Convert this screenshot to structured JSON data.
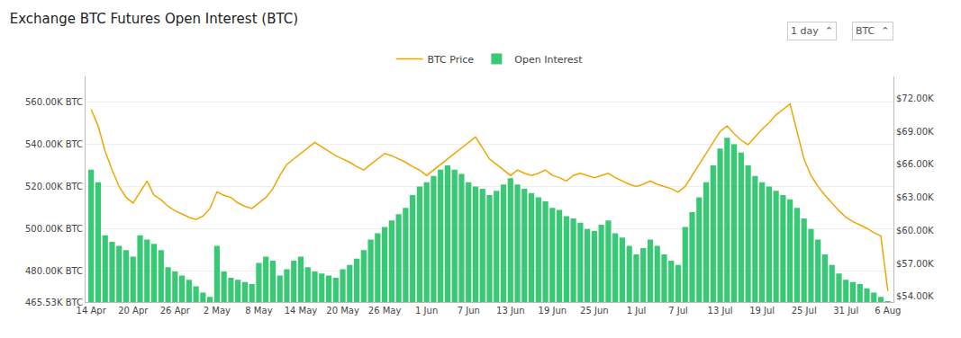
{
  "chart_data": {
    "type": "bar",
    "title": "Exchange BTC Futures Open Interest (BTC)",
    "categories": [
      "14 Apr",
      null,
      null,
      null,
      null,
      null,
      "20 Apr",
      null,
      null,
      null,
      null,
      null,
      "26 Apr",
      null,
      null,
      null,
      null,
      null,
      "2 May",
      null,
      null,
      null,
      null,
      null,
      "8 May",
      null,
      null,
      null,
      null,
      null,
      "14 May",
      null,
      null,
      null,
      null,
      null,
      "20 May",
      null,
      null,
      null,
      null,
      null,
      "26 May",
      null,
      null,
      null,
      null,
      null,
      "1 Jun",
      null,
      null,
      null,
      null,
      null,
      "7 Jun",
      null,
      null,
      null,
      null,
      null,
      "13 Jun",
      null,
      null,
      null,
      null,
      null,
      "19 Jun",
      null,
      null,
      null,
      null,
      null,
      "25 Jun",
      null,
      null,
      null,
      null,
      null,
      "1 Jul",
      null,
      null,
      null,
      null,
      null,
      "7 Jul",
      null,
      null,
      null,
      null,
      null,
      "13 Jul",
      null,
      null,
      null,
      null,
      null,
      "19 Jul",
      null,
      null,
      null,
      null,
      null,
      "25 Jul",
      null,
      null,
      null,
      null,
      null,
      "31 Jul",
      null,
      null,
      null,
      null,
      null,
      "6 Aug"
    ],
    "series": [
      {
        "name": "Open Interest",
        "type": "bar",
        "color": "#2dc76d",
        "values": [
          528000,
          522000,
          497000,
          494000,
          492000,
          490000,
          487000,
          497000,
          495000,
          493000,
          490000,
          482000,
          480000,
          478000,
          476000,
          473000,
          470000,
          468000,
          492000,
          480000,
          477000,
          476000,
          475000,
          474000,
          484000,
          487000,
          485000,
          478000,
          481000,
          485000,
          487000,
          482000,
          480000,
          479000,
          478000,
          477000,
          481000,
          483000,
          486000,
          490000,
          495000,
          498000,
          501000,
          504000,
          507000,
          510000,
          516000,
          520000,
          522000,
          525000,
          528000,
          530000,
          528000,
          526000,
          522000,
          520000,
          519000,
          516000,
          518000,
          521000,
          524000,
          521000,
          519000,
          517000,
          515000,
          513000,
          510000,
          509000,
          506000,
          505000,
          503000,
          500000,
          499000,
          502000,
          504000,
          498000,
          496000,
          492000,
          488000,
          491000,
          495000,
          492000,
          488000,
          485000,
          483000,
          501000,
          508000,
          515000,
          522000,
          530000,
          538000,
          543000,
          540000,
          536000,
          530000,
          525000,
          522000,
          520000,
          518000,
          516000,
          514000,
          510000,
          505000,
          500000,
          495000,
          488000,
          483000,
          479000,
          476000,
          475000,
          474000,
          472000,
          470000,
          468000,
          466000
        ]
      },
      {
        "name": "BTC Price",
        "type": "line",
        "color": "#f0a500",
        "axis": "y2",
        "values": [
          71000,
          69500,
          67200,
          65500,
          64000,
          63000,
          62500,
          63500,
          64500,
          63200,
          62800,
          62200,
          61800,
          61500,
          61200,
          61000,
          61300,
          62000,
          63500,
          63200,
          63000,
          62500,
          62200,
          62000,
          62500,
          63000,
          63800,
          65000,
          66000,
          66500,
          67000,
          67500,
          68000,
          67600,
          67200,
          66800,
          66500,
          66200,
          65800,
          65500,
          66000,
          66500,
          67000,
          66800,
          66500,
          66200,
          65800,
          65500,
          65000,
          65500,
          66000,
          66500,
          67000,
          67500,
          68000,
          68500,
          67500,
          66500,
          66000,
          65500,
          65000,
          65500,
          65200,
          65000,
          65200,
          65500,
          65000,
          64800,
          64500,
          65000,
          65200,
          65000,
          64800,
          65000,
          65200,
          64800,
          64500,
          64200,
          64000,
          64200,
          64500,
          64200,
          64000,
          63800,
          63500,
          64000,
          65000,
          66000,
          67000,
          68000,
          69000,
          69500,
          68800,
          68200,
          67800,
          68500,
          69200,
          69800,
          70500,
          71000,
          71500,
          69000,
          66500,
          65000,
          64000,
          63200,
          62500,
          61800,
          61200,
          60800,
          60500,
          60200,
          59800,
          59500,
          54500
        ]
      }
    ],
    "ylim": [
      465530,
      572000
    ],
    "yticks": [
      {
        "value": 465530,
        "label": "465.53K BTC"
      },
      {
        "value": 480000,
        "label": "480.00K BTC"
      },
      {
        "value": 500000,
        "label": "500.00K BTC"
      },
      {
        "value": 520000,
        "label": "520.00K BTC"
      },
      {
        "value": 540000,
        "label": "540.00K BTC"
      },
      {
        "value": 560000,
        "label": "560.00K BTC"
      }
    ],
    "y2lim": [
      53500,
      74000
    ],
    "y2ticks": [
      {
        "value": 54000,
        "label": "$54.00K"
      },
      {
        "value": 57000,
        "label": "$57.00K"
      },
      {
        "value": 60000,
        "label": "$60.00K"
      },
      {
        "value": 63000,
        "label": "$63.00K"
      },
      {
        "value": 66000,
        "label": "$66.00K"
      },
      {
        "value": 69000,
        "label": "$69.00K"
      },
      {
        "value": 72000,
        "label": "$72.00K"
      }
    ],
    "grid": true,
    "legend": "upper center",
    "annotations": [
      "1 day  ⌃",
      "BTC  ⌃"
    ]
  }
}
